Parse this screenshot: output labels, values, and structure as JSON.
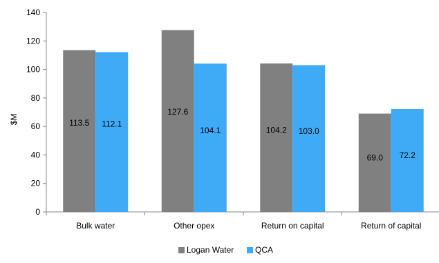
{
  "chart_data": {
    "type": "bar",
    "categories": [
      "Bulk water",
      "Other opex",
      "Return on capital",
      "Return of capital"
    ],
    "series": [
      {
        "name": "Logan Water",
        "values": [
          113.5,
          127.6,
          104.2,
          69.0
        ],
        "labels": [
          "113.5",
          "127.6",
          "104.2",
          "69.0"
        ],
        "color": "#808080"
      },
      {
        "name": "QCA",
        "values": [
          112.1,
          104.1,
          103.0,
          72.2
        ],
        "labels": [
          "112.1",
          "104.1",
          "103.0",
          "72.2"
        ],
        "color": "#3FAAF6"
      }
    ],
    "title": "",
    "xlabel": "",
    "ylabel": "$M",
    "ylim": [
      0,
      140
    ],
    "yticks": [
      "0",
      "20",
      "40",
      "60",
      "80",
      "100",
      "120",
      "140"
    ],
    "grid": false,
    "legend_position": "bottom"
  }
}
